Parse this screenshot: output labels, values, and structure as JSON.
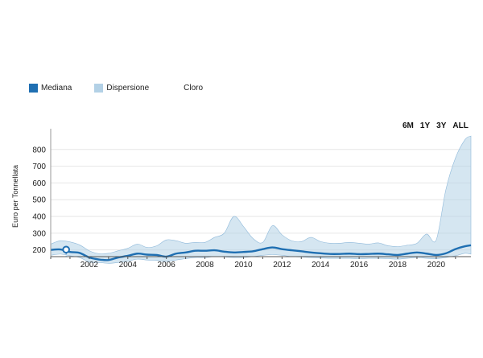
{
  "legend": {
    "items": [
      {
        "label": "Mediana",
        "color": "#1f6fb2"
      },
      {
        "label": "Dispersione",
        "color": "#b3d1e6"
      },
      {
        "label": "Cloro",
        "color": ""
      }
    ]
  },
  "range_buttons": [
    "6M",
    "1Y",
    "3Y",
    "ALL"
  ],
  "chart_data": {
    "type": "area",
    "ylabel": "Euro per Tonnellata",
    "ylim": [
      160,
      900
    ],
    "xlim": [
      2000,
      2021.8
    ],
    "y_ticks": [
      200,
      300,
      400,
      500,
      600,
      700,
      800
    ],
    "x_ticks": [
      "2002",
      "2004",
      "2006",
      "2008",
      "2010",
      "2012",
      "2014",
      "2016",
      "2018",
      "2020"
    ],
    "x_tick_values": [
      2002,
      2004,
      2006,
      2008,
      2010,
      2012,
      2014,
      2016,
      2018,
      2020
    ],
    "marker": {
      "x": 2000.8,
      "y": 202
    },
    "series": [
      {
        "name": "Mediana",
        "color": "#1f6fb2",
        "x": [
          2000.0,
          2000.5,
          2001.0,
          2001.5,
          2002.0,
          2002.5,
          2003.0,
          2003.5,
          2004.0,
          2004.5,
          2005.0,
          2005.5,
          2006.0,
          2006.5,
          2007.0,
          2007.5,
          2008.0,
          2008.5,
          2009.0,
          2009.5,
          2010.0,
          2010.5,
          2011.0,
          2011.5,
          2012.0,
          2012.5,
          2013.0,
          2013.5,
          2014.0,
          2014.5,
          2015.0,
          2015.5,
          2016.0,
          2016.5,
          2017.0,
          2017.5,
          2018.0,
          2018.5,
          2019.0,
          2019.5,
          2020.0,
          2020.5,
          2021.0,
          2021.5,
          2021.8
        ],
        "values": [
          200,
          203,
          188,
          182,
          155,
          143,
          140,
          155,
          165,
          178,
          172,
          170,
          160,
          178,
          185,
          195,
          195,
          198,
          190,
          185,
          188,
          192,
          205,
          215,
          205,
          198,
          192,
          185,
          180,
          176,
          176,
          178,
          175,
          176,
          178,
          174,
          170,
          178,
          185,
          178,
          170,
          180,
          205,
          222,
          228
        ]
      },
      {
        "name": "Dispersione",
        "color": "#b3d1e6",
        "x": [
          2000.0,
          2000.5,
          2001.0,
          2001.5,
          2002.0,
          2002.5,
          2003.0,
          2003.5,
          2004.0,
          2004.5,
          2005.0,
          2005.5,
          2006.0,
          2006.5,
          2007.0,
          2007.5,
          2008.0,
          2008.5,
          2009.0,
          2009.5,
          2010.0,
          2010.5,
          2011.0,
          2011.5,
          2012.0,
          2012.5,
          2013.0,
          2013.5,
          2014.0,
          2014.5,
          2015.0,
          2015.5,
          2016.0,
          2016.5,
          2017.0,
          2017.5,
          2018.0,
          2018.5,
          2019.0,
          2019.5,
          2020.0,
          2020.5,
          2021.0,
          2021.5,
          2021.8
        ],
        "upper": [
          235,
          255,
          248,
          230,
          195,
          178,
          180,
          195,
          210,
          235,
          215,
          225,
          260,
          255,
          240,
          245,
          245,
          275,
          300,
          400,
          340,
          268,
          245,
          345,
          290,
          255,
          250,
          275,
          250,
          240,
          240,
          245,
          240,
          235,
          242,
          225,
          220,
          228,
          240,
          295,
          260,
          560,
          750,
          860,
          880
        ],
        "lower": [
          168,
          175,
          165,
          155,
          128,
          125,
          120,
          125,
          133,
          145,
          140,
          138,
          132,
          140,
          148,
          155,
          155,
          160,
          158,
          155,
          155,
          160,
          168,
          172,
          168,
          160,
          158,
          155,
          152,
          150,
          150,
          150,
          148,
          150,
          150,
          148,
          145,
          150,
          155,
          150,
          148,
          155,
          165,
          180,
          175
        ]
      }
    ]
  }
}
